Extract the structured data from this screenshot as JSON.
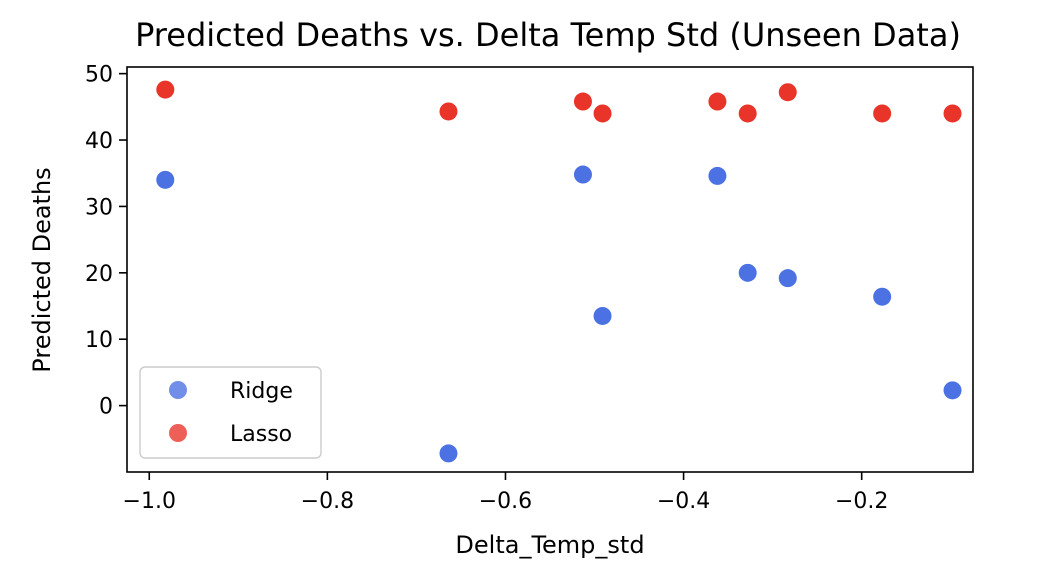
{
  "chart_data": {
    "type": "scatter",
    "title": "Predicted Deaths vs. Delta Temp Std (Unseen Data)",
    "xlabel": "Delta_Temp_std",
    "ylabel": "Predicted Deaths",
    "xlim": [
      -1.025,
      -0.075
    ],
    "ylim": [
      -10,
      51
    ],
    "xticks": [
      -1.0,
      -0.8,
      -0.6,
      -0.4,
      -0.2
    ],
    "xtick_labels": [
      "−1.0",
      "−0.8",
      "−0.6",
      "−0.4",
      "−0.2"
    ],
    "yticks": [
      0,
      10,
      20,
      30,
      40,
      50
    ],
    "ytick_labels": [
      "0",
      "10",
      "20",
      "30",
      "40",
      "50"
    ],
    "grid": false,
    "legend_position": "lower-left",
    "series": [
      {
        "name": "Ridge",
        "color": "#4169e1",
        "points": [
          {
            "x": -0.982,
            "y": 34.0
          },
          {
            "x": -0.664,
            "y": -7.2
          },
          {
            "x": -0.513,
            "y": 34.8
          },
          {
            "x": -0.491,
            "y": 13.5
          },
          {
            "x": -0.362,
            "y": 34.6
          },
          {
            "x": -0.328,
            "y": 20.0
          },
          {
            "x": -0.283,
            "y": 19.2
          },
          {
            "x": -0.177,
            "y": 16.4
          },
          {
            "x": -0.098,
            "y": 2.3
          }
        ]
      },
      {
        "name": "Lasso",
        "color": "#e8291f",
        "points": [
          {
            "x": -0.982,
            "y": 47.6
          },
          {
            "x": -0.664,
            "y": 44.3
          },
          {
            "x": -0.513,
            "y": 45.8
          },
          {
            "x": -0.491,
            "y": 44.0
          },
          {
            "x": -0.362,
            "y": 45.8
          },
          {
            "x": -0.328,
            "y": 44.0
          },
          {
            "x": -0.283,
            "y": 47.2
          },
          {
            "x": -0.177,
            "y": 44.0
          },
          {
            "x": -0.098,
            "y": 44.0
          }
        ]
      }
    ]
  }
}
